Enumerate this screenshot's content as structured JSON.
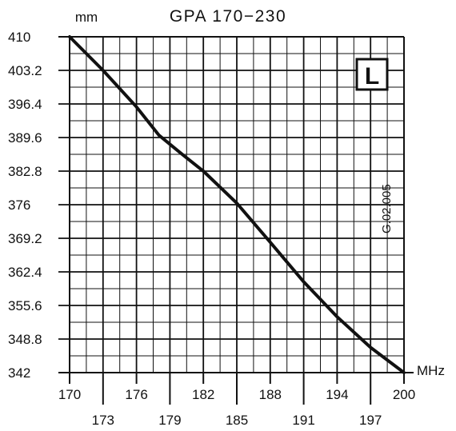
{
  "chart_data": {
    "type": "line",
    "title": "GPA 170−230",
    "y_unit_label": "mm",
    "x_unit_label": "MHz",
    "badge": "L",
    "code": "G.02.005",
    "xlim": [
      170,
      200
    ],
    "ylim": [
      342,
      410
    ],
    "x_ticks_row1": [
      "170",
      "176",
      "182",
      "188",
      "194",
      "200"
    ],
    "x_ticks_row2": [
      "173",
      "179",
      "185",
      "191",
      "197"
    ],
    "y_ticks": [
      "410",
      "403.2",
      "396.4",
      "389.6",
      "382.8",
      "376",
      "369.2",
      "362.4",
      "355.6",
      "348.8",
      "342"
    ],
    "grid": true,
    "x_minor_step": 1.5,
    "y_minor_step": 3.4,
    "series": [
      {
        "x": [
          170,
          173,
          176,
          178,
          180,
          182,
          185,
          188,
          191,
          194,
          197,
          200
        ],
        "y": [
          410,
          403.2,
          395.8,
          390.1,
          386.4,
          382.8,
          376.3,
          368.4,
          360.4,
          353.3,
          347.1,
          342
        ]
      }
    ]
  }
}
